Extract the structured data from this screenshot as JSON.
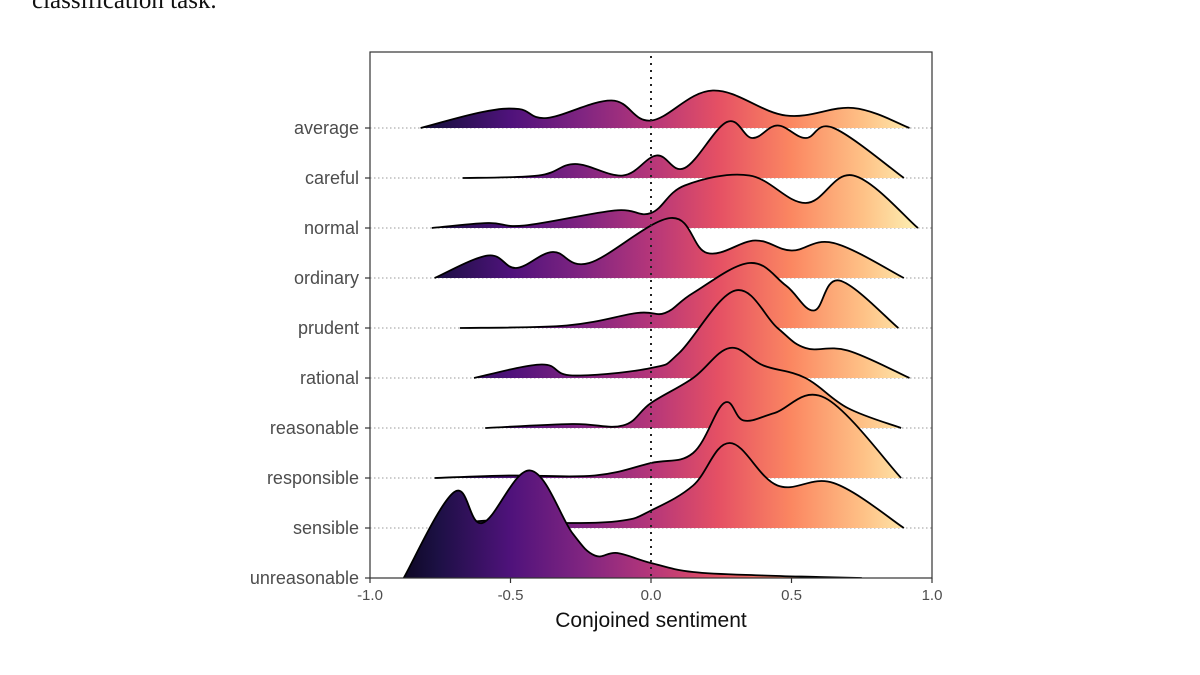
{
  "page_text": {
    "top_fragment": "classification task."
  },
  "chart_data": {
    "type": "ridgeline",
    "xlabel": "Conjoined sentiment",
    "ylabel": "",
    "xlim": [
      -1.0,
      1.0
    ],
    "x_ticks": [
      "-1.0",
      "-0.5",
      "0.0",
      "0.5",
      "1.0"
    ],
    "x_tick_values": [
      -1.0,
      -0.5,
      0.0,
      0.5,
      1.0
    ],
    "reference_line_x": 0.0,
    "color_scale": "magma: dark purple at -1.0 to light orange at 1.0",
    "categories": [
      "average",
      "careful",
      "normal",
      "ordinary",
      "prudent",
      "rational",
      "reasonable",
      "responsible",
      "sensible",
      "unreasonable"
    ],
    "series": [
      {
        "name": "average",
        "range": [
          -0.82,
          0.92
        ],
        "peaks": [
          [
            -0.82,
            0.0
          ],
          [
            -0.6,
            0.32
          ],
          [
            -0.47,
            0.38
          ],
          [
            -0.37,
            0.2
          ],
          [
            -0.14,
            0.55
          ],
          [
            0.0,
            0.15
          ],
          [
            0.22,
            0.75
          ],
          [
            0.48,
            0.25
          ],
          [
            0.72,
            0.4
          ],
          [
            0.92,
            0.0
          ]
        ]
      },
      {
        "name": "careful",
        "range": [
          -0.67,
          0.9
        ],
        "peaks": [
          [
            -0.67,
            0.0
          ],
          [
            -0.4,
            0.05
          ],
          [
            -0.27,
            0.28
          ],
          [
            -0.1,
            0.05
          ],
          [
            0.02,
            0.45
          ],
          [
            0.12,
            0.2
          ],
          [
            0.27,
            1.12
          ],
          [
            0.36,
            0.8
          ],
          [
            0.45,
            1.05
          ],
          [
            0.55,
            0.8
          ],
          [
            0.65,
            1.0
          ],
          [
            0.9,
            0.0
          ]
        ]
      },
      {
        "name": "normal",
        "range": [
          -0.78,
          0.95
        ],
        "peaks": [
          [
            -0.78,
            0.0
          ],
          [
            -0.58,
            0.1
          ],
          [
            -0.45,
            0.05
          ],
          [
            -0.13,
            0.35
          ],
          [
            0.0,
            0.3
          ],
          [
            0.12,
            0.85
          ],
          [
            0.35,
            1.05
          ],
          [
            0.55,
            0.5
          ],
          [
            0.72,
            1.05
          ],
          [
            0.95,
            0.0
          ]
        ]
      },
      {
        "name": "ordinary",
        "range": [
          -0.77,
          0.9
        ],
        "peaks": [
          [
            -0.77,
            0.0
          ],
          [
            -0.58,
            0.45
          ],
          [
            -0.48,
            0.2
          ],
          [
            -0.35,
            0.52
          ],
          [
            -0.22,
            0.3
          ],
          [
            0.07,
            1.2
          ],
          [
            0.2,
            0.5
          ],
          [
            0.37,
            0.75
          ],
          [
            0.5,
            0.55
          ],
          [
            0.65,
            0.7
          ],
          [
            0.9,
            0.0
          ]
        ]
      },
      {
        "name": "prudent",
        "range": [
          -0.68,
          0.88
        ],
        "peaks": [
          [
            -0.68,
            0.0
          ],
          [
            -0.3,
            0.05
          ],
          [
            -0.05,
            0.3
          ],
          [
            0.05,
            0.3
          ],
          [
            0.15,
            0.7
          ],
          [
            0.35,
            1.3
          ],
          [
            0.48,
            0.85
          ],
          [
            0.58,
            0.35
          ],
          [
            0.67,
            0.95
          ],
          [
            0.88,
            0.0
          ]
        ]
      },
      {
        "name": "rational",
        "range": [
          -0.63,
          0.92
        ],
        "peaks": [
          [
            -0.63,
            0.0
          ],
          [
            -0.39,
            0.27
          ],
          [
            -0.28,
            0.05
          ],
          [
            0.0,
            0.2
          ],
          [
            0.1,
            0.5
          ],
          [
            0.3,
            1.75
          ],
          [
            0.45,
            1.0
          ],
          [
            0.55,
            0.6
          ],
          [
            0.7,
            0.55
          ],
          [
            0.92,
            0.0
          ]
        ]
      },
      {
        "name": "reasonable",
        "range": [
          -0.59,
          0.89
        ],
        "peaks": [
          [
            -0.59,
            0.0
          ],
          [
            -0.28,
            0.08
          ],
          [
            -0.1,
            0.05
          ],
          [
            0.0,
            0.5
          ],
          [
            0.15,
            1.0
          ],
          [
            0.28,
            1.6
          ],
          [
            0.4,
            1.25
          ],
          [
            0.55,
            1.0
          ],
          [
            0.7,
            0.4
          ],
          [
            0.89,
            0.0
          ]
        ]
      },
      {
        "name": "responsible",
        "range": [
          -0.77,
          0.89
        ],
        "peaks": [
          [
            -0.77,
            0.0
          ],
          [
            -0.5,
            0.05
          ],
          [
            -0.2,
            0.05
          ],
          [
            0.0,
            0.3
          ],
          [
            0.15,
            0.5
          ],
          [
            0.26,
            1.5
          ],
          [
            0.33,
            1.15
          ],
          [
            0.44,
            1.3
          ],
          [
            0.62,
            1.6
          ],
          [
            0.89,
            0.0
          ]
        ]
      },
      {
        "name": "sensible",
        "range": [
          -0.78,
          0.9
        ],
        "peaks": [
          [
            -0.78,
            0.0
          ],
          [
            -0.58,
            0.15
          ],
          [
            -0.3,
            0.1
          ],
          [
            -0.1,
            0.15
          ],
          [
            0.0,
            0.35
          ],
          [
            0.15,
            0.85
          ],
          [
            0.28,
            1.7
          ],
          [
            0.45,
            0.85
          ],
          [
            0.65,
            0.9
          ],
          [
            0.9,
            0.0
          ]
        ]
      },
      {
        "name": "unreasonable",
        "range": [
          -0.88,
          0.75
        ],
        "peaks": [
          [
            -0.88,
            0.0
          ],
          [
            -0.7,
            1.72
          ],
          [
            -0.6,
            1.1
          ],
          [
            -0.43,
            2.15
          ],
          [
            -0.28,
            0.9
          ],
          [
            -0.2,
            0.45
          ],
          [
            -0.12,
            0.5
          ],
          [
            0.0,
            0.3
          ],
          [
            0.15,
            0.12
          ],
          [
            0.4,
            0.05
          ],
          [
            0.6,
            0.02
          ],
          [
            0.75,
            0.0
          ]
        ]
      }
    ]
  }
}
